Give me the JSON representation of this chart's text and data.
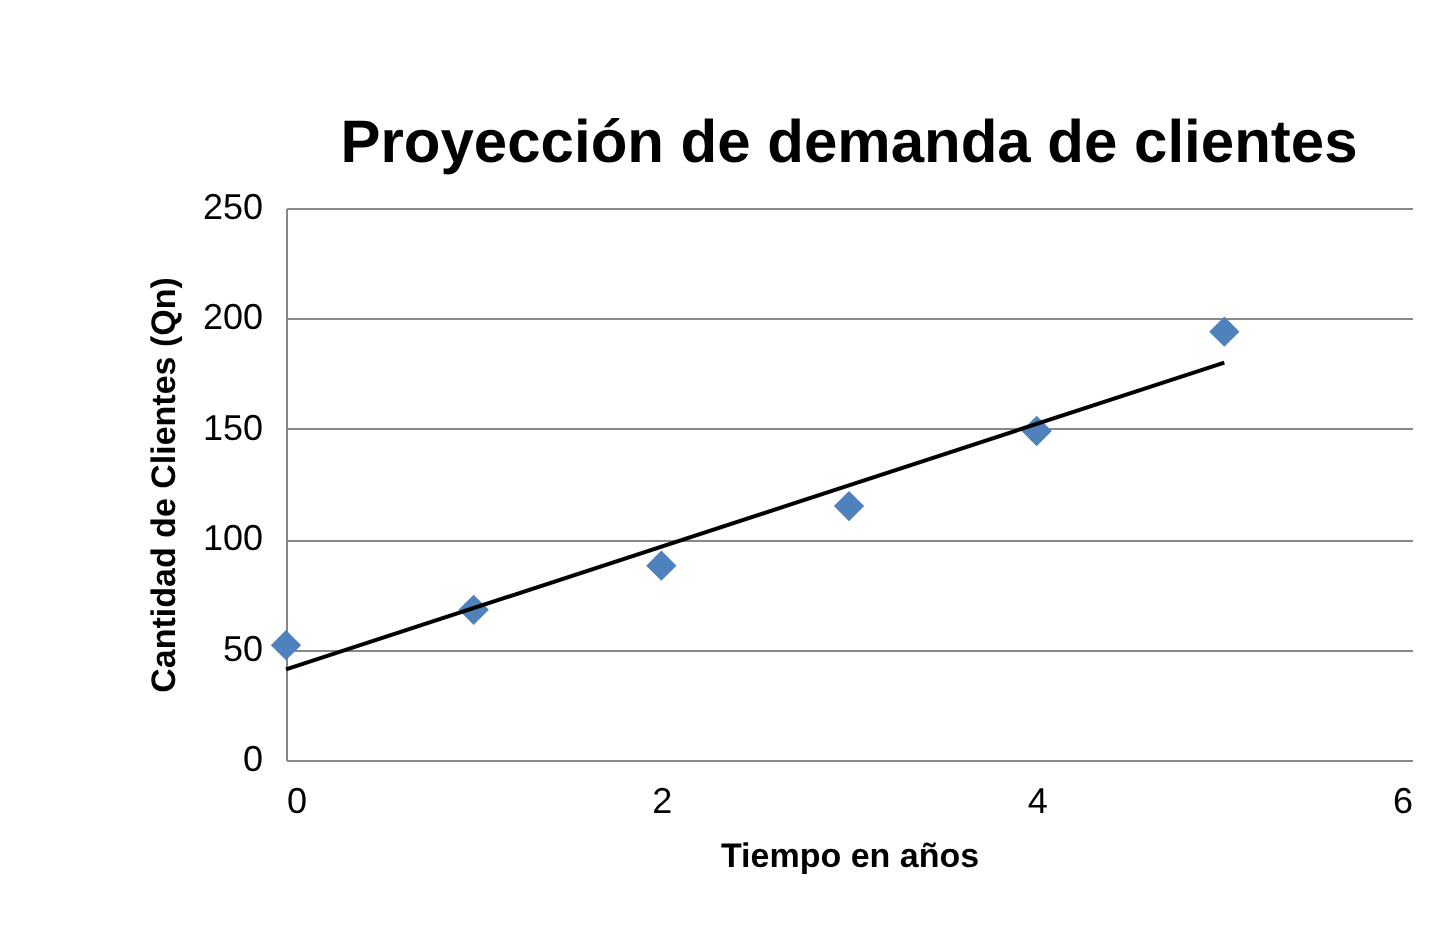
{
  "chart_data": {
    "type": "scatter",
    "title": "Proyección de demanda de clientes",
    "xlabel": "Tiempo en años",
    "ylabel": "Cantidad de Clientes (Qn)",
    "x": [
      0,
      1,
      2,
      3,
      4,
      5
    ],
    "series": [
      {
        "color": "#4f81bd",
        "marker": "diamond",
        "values": [
          52,
          68,
          88,
          115,
          149,
          194
        ]
      },
      {
        "type": "line",
        "color": "#000000",
        "marker": "none",
        "x": [
          0,
          5
        ],
        "values": [
          41,
          180
        ]
      }
    ],
    "xlim": [
      0,
      6
    ],
    "xticks": [
      0,
      2,
      4,
      6
    ],
    "ylim": [
      0,
      250
    ],
    "yticks": [
      0,
      50,
      100,
      150,
      200,
      250
    ],
    "grid": "y"
  }
}
